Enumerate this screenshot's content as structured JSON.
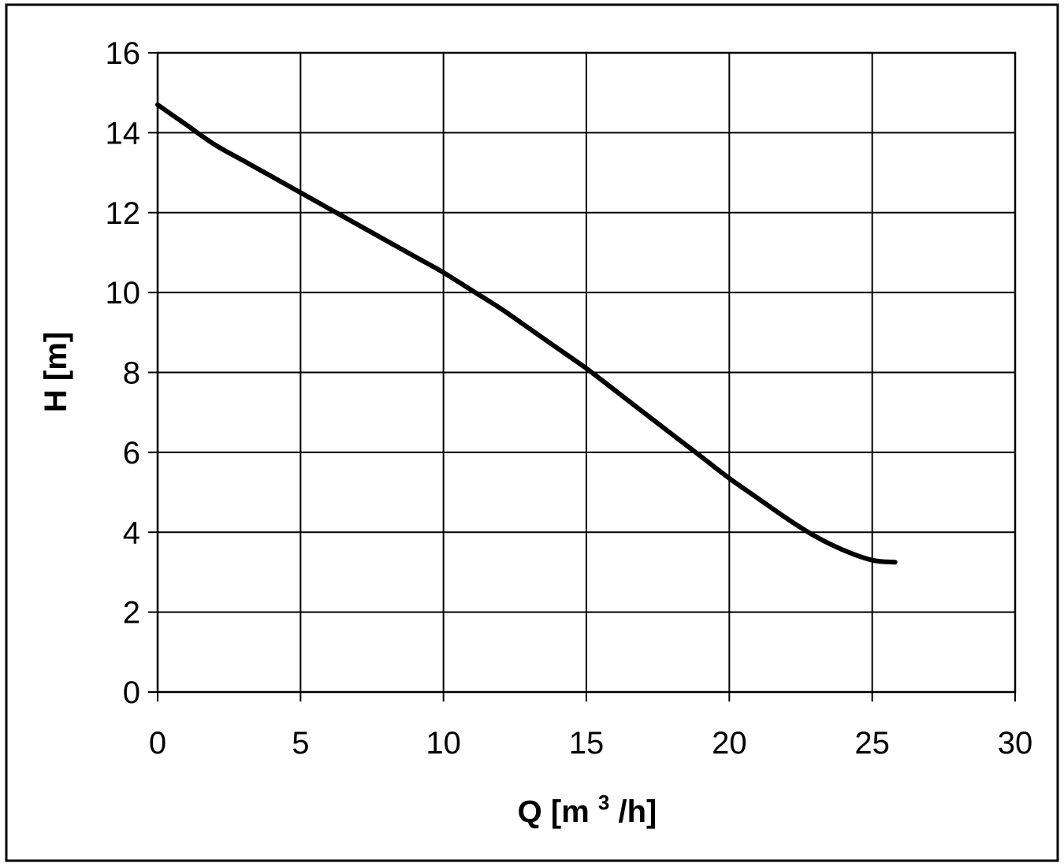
{
  "chart_data": {
    "type": "line",
    "title": "",
    "xlabel_main": "Q [m",
    "xlabel_sup": "3",
    "xlabel_tail": "/h]",
    "ylabel": "H [m]",
    "xlim": [
      0,
      30
    ],
    "ylim": [
      0,
      16
    ],
    "x_ticks": [
      "0",
      "5",
      "10",
      "15",
      "20",
      "25",
      "30"
    ],
    "y_ticks": [
      "0",
      "2",
      "4",
      "6",
      "8",
      "10",
      "12",
      "14",
      "16"
    ],
    "grid": true,
    "legend": "none",
    "line_color": "#000000",
    "series": [
      {
        "x": [
          0,
          1,
          2,
          3,
          4,
          5,
          6,
          7,
          8,
          9,
          10,
          11,
          12,
          13,
          14,
          15,
          16,
          17,
          18,
          19,
          20,
          21,
          22,
          23,
          24,
          25,
          25.8
        ],
        "y": [
          14.7,
          14.2,
          13.7,
          13.3,
          12.9,
          12.5,
          12.1,
          11.7,
          11.3,
          10.9,
          10.5,
          10.05,
          9.6,
          9.1,
          8.6,
          8.1,
          7.55,
          7.0,
          6.45,
          5.9,
          5.35,
          4.85,
          4.35,
          3.9,
          3.55,
          3.3,
          3.25
        ]
      }
    ]
  }
}
